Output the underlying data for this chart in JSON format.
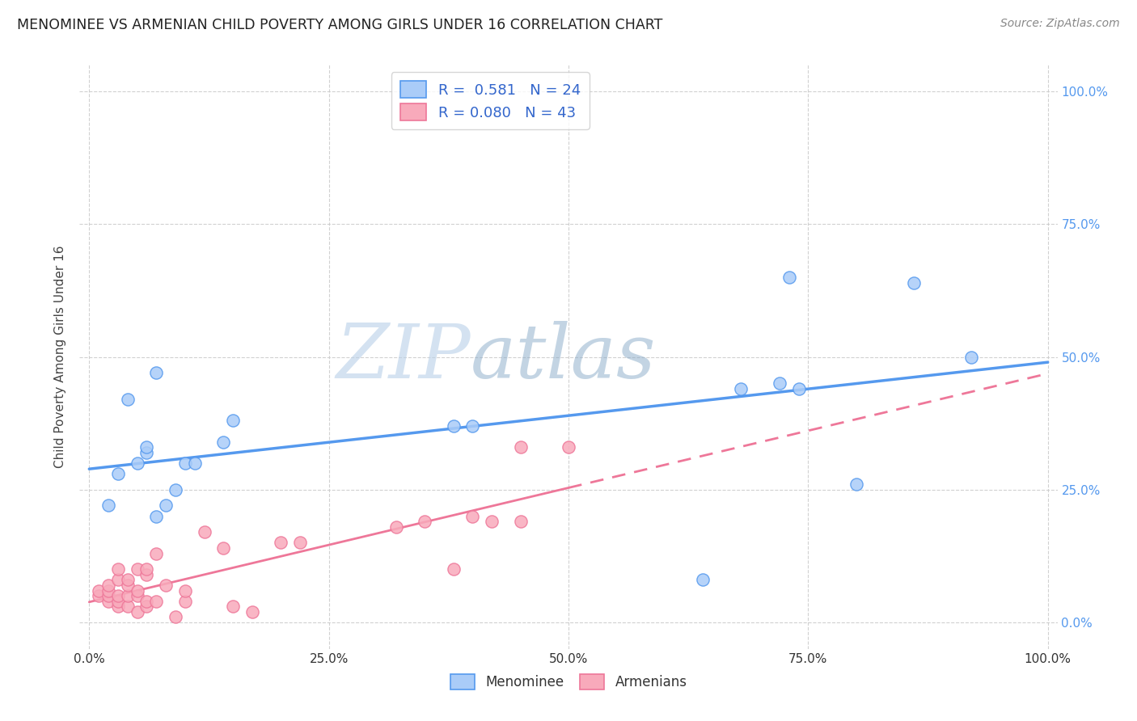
{
  "title": "MENOMINEE VS ARMENIAN CHILD POVERTY AMONG GIRLS UNDER 16 CORRELATION CHART",
  "source": "Source: ZipAtlas.com",
  "ylabel": "Child Poverty Among Girls Under 16",
  "watermark_zip": "ZIP",
  "watermark_atlas": "atlas",
  "menominee_R": 0.581,
  "menominee_N": 24,
  "armenian_R": 0.08,
  "armenian_N": 43,
  "menominee_color": "#aaccf8",
  "armenian_color": "#f8aabb",
  "menominee_line_color": "#5599ee",
  "armenian_line_color": "#ee7799",
  "background_color": "#ffffff",
  "grid_color": "#cccccc",
  "menominee_x": [
    0.02,
    0.03,
    0.04,
    0.05,
    0.06,
    0.06,
    0.07,
    0.07,
    0.08,
    0.09,
    0.1,
    0.11,
    0.14,
    0.15,
    0.38,
    0.4,
    0.64,
    0.68,
    0.72,
    0.73,
    0.74,
    0.8,
    0.86,
    0.92
  ],
  "menominee_y": [
    0.22,
    0.28,
    0.42,
    0.3,
    0.32,
    0.33,
    0.47,
    0.2,
    0.22,
    0.25,
    0.3,
    0.3,
    0.34,
    0.38,
    0.37,
    0.37,
    0.08,
    0.44,
    0.45,
    0.65,
    0.44,
    0.26,
    0.64,
    0.5
  ],
  "armenian_x": [
    0.01,
    0.01,
    0.02,
    0.02,
    0.02,
    0.02,
    0.03,
    0.03,
    0.03,
    0.03,
    0.03,
    0.04,
    0.04,
    0.04,
    0.04,
    0.05,
    0.05,
    0.05,
    0.05,
    0.06,
    0.06,
    0.06,
    0.06,
    0.07,
    0.07,
    0.08,
    0.09,
    0.1,
    0.1,
    0.12,
    0.14,
    0.15,
    0.17,
    0.2,
    0.22,
    0.32,
    0.35,
    0.38,
    0.4,
    0.42,
    0.45,
    0.45,
    0.5
  ],
  "armenian_y": [
    0.05,
    0.06,
    0.04,
    0.05,
    0.06,
    0.07,
    0.03,
    0.04,
    0.05,
    0.08,
    0.1,
    0.03,
    0.05,
    0.07,
    0.08,
    0.02,
    0.05,
    0.06,
    0.1,
    0.03,
    0.04,
    0.09,
    0.1,
    0.04,
    0.13,
    0.07,
    0.01,
    0.04,
    0.06,
    0.17,
    0.14,
    0.03,
    0.02,
    0.15,
    0.15,
    0.18,
    0.19,
    0.1,
    0.2,
    0.19,
    0.19,
    0.33,
    0.33
  ],
  "yticks": [
    0.0,
    0.25,
    0.5,
    0.75,
    1.0
  ],
  "xticks": [
    0.0,
    0.25,
    0.5,
    0.75,
    1.0
  ],
  "xlim": [
    -0.01,
    1.01
  ],
  "ylim": [
    -0.05,
    1.05
  ]
}
